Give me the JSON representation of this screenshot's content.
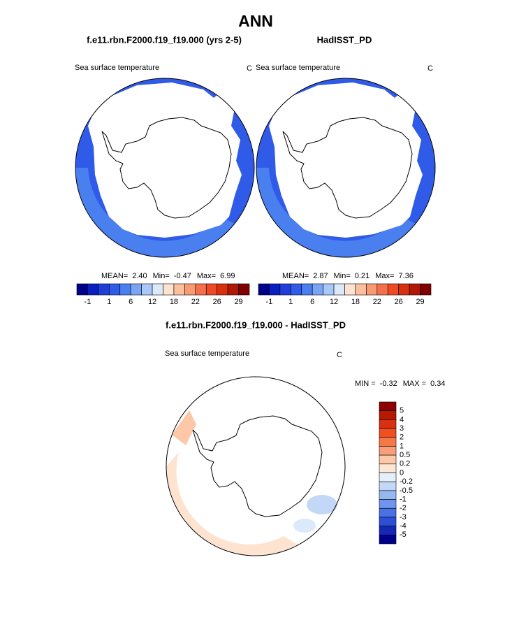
{
  "title": "ANN",
  "panels": [
    {
      "subtitle": "f.e11.rbn.F2000.f19_f19.000 (yrs 2-5)",
      "variable": "Sea surface temperature",
      "units": "C",
      "stats": [
        {
          "label": "MEAN=",
          "value": "2.40"
        },
        {
          "label": "Min=",
          "value": "-0.47"
        },
        {
          "label": "Max=",
          "value": "6.99"
        }
      ]
    },
    {
      "subtitle": "HadISST_PD",
      "variable": "Sea surface temperature",
      "units": "C",
      "stats": [
        {
          "label": "MEAN=",
          "value": "2.87"
        },
        {
          "label": "Min=",
          "value": "0.21"
        },
        {
          "label": "Max=",
          "value": "7.36"
        }
      ]
    }
  ],
  "colorbar": {
    "labels": [
      -1,
      1,
      6,
      12,
      18,
      22,
      26,
      29
    ],
    "colors": [
      "#00008b",
      "#0a1fbf",
      "#1f3fd8",
      "#2f5be8",
      "#4a7ff0",
      "#7aa5f5",
      "#a9c8fa",
      "#dce9fb",
      "#fde3d0",
      "#fbbf9e",
      "#f89a72",
      "#f4704a",
      "#ee4a25",
      "#d8300f",
      "#b01a05",
      "#800000"
    ]
  },
  "difference": {
    "title": "f.e11.rbn.F2000.f19_f19.000 - HadISST_PD",
    "variable": "Sea surface temperature",
    "units": "C",
    "stats": [
      {
        "label": "MIN =",
        "value": "-0.32"
      },
      {
        "label": "MAX =",
        "value": "0.34"
      }
    ],
    "colorbar": {
      "labels": [
        5,
        4,
        3,
        2,
        1,
        0.5,
        0.2,
        0,
        -0.2,
        -0.5,
        -1,
        -2,
        -3,
        -4,
        -5
      ],
      "colors": [
        "#8b0000",
        "#b51a00",
        "#d83010",
        "#f05020",
        "#f4784a",
        "#f89e78",
        "#fcc8a8",
        "#fde6d6",
        "#e6f0fb",
        "#c2d8f6",
        "#98b8f2",
        "#6f95ee",
        "#4a70e6",
        "#2c4fd8",
        "#1428b4",
        "#00008b"
      ]
    }
  }
}
